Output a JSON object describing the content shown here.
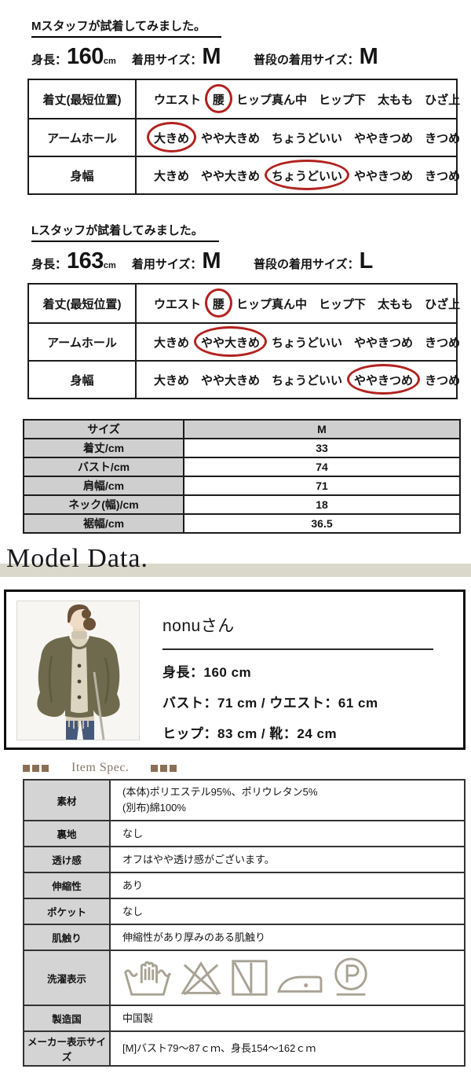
{
  "colors": {
    "red": "#b2221e",
    "band": "#d9d8ca",
    "brown": "#8a6f54",
    "spectxt": "#85796a",
    "icon": "#a8a294",
    "grayhead": "#cfcfcf",
    "specgray": "#d4d4d4"
  },
  "staff_sections": [
    {
      "title": "Mスタッフが試着してみました。",
      "height_label": "身長：",
      "height_value": "160",
      "height_unit": "cm",
      "wear_label": "着用サイズ：",
      "wear_value": "M",
      "usual_label": "普段の着用サイズ：",
      "usual_value": "M",
      "rows": [
        {
          "label": "着丈(最短位置)",
          "options": [
            "ウエスト",
            "腰",
            "ヒップ真ん中",
            "ヒップ下",
            "太もも",
            "ひざ上"
          ],
          "selected": 1
        },
        {
          "label": "アームホール",
          "options": [
            "大きめ",
            "やや大きめ",
            "ちょうどいい",
            "ややきつめ",
            "きつめ"
          ],
          "selected": 0
        },
        {
          "label": "身幅",
          "options": [
            "大きめ",
            "やや大きめ",
            "ちょうどいい",
            "ややきつめ",
            "きつめ"
          ],
          "selected": 2
        }
      ]
    },
    {
      "title": "Lスタッフが試着してみました。",
      "height_label": "身長：",
      "height_value": "163",
      "height_unit": "cm",
      "wear_label": "着用サイズ：",
      "wear_value": "M",
      "usual_label": "普段の着用サイズ：",
      "usual_value": "L",
      "rows": [
        {
          "label": "着丈(最短位置)",
          "options": [
            "ウエスト",
            "腰",
            "ヒップ真ん中",
            "ヒップ下",
            "太もも",
            "ひざ上"
          ],
          "selected": 1
        },
        {
          "label": "アームホール",
          "options": [
            "大きめ",
            "やや大きめ",
            "ちょうどいい",
            "ややきつめ",
            "きつめ"
          ],
          "selected": 1
        },
        {
          "label": "身幅",
          "options": [
            "大きめ",
            "やや大きめ",
            "ちょうどいい",
            "ややきつめ",
            "きつめ"
          ],
          "selected": 3
        }
      ]
    }
  ],
  "size_table": {
    "header": [
      "サイズ",
      "M"
    ],
    "rows": [
      [
        "着丈/cm",
        "33"
      ],
      [
        "バスト/cm",
        "74"
      ],
      [
        "肩幅/cm",
        "71"
      ],
      [
        "ネック(幅)/cm",
        "18"
      ],
      [
        "裾幅/cm",
        "36.5"
      ]
    ]
  },
  "model_section": {
    "heading": "Model Data.",
    "name": "nonuさん",
    "lines": [
      "身長：160 cm",
      "バスト：71 cm / ウエスト：61 cm",
      "ヒップ：83 cm / 靴：24 cm"
    ]
  },
  "item_spec": {
    "heading": "Item Spec.",
    "rows": [
      {
        "label": "素材",
        "value": "(本体)ポリエステル95%、ポリウレタン5%\n(別布)綿100%",
        "size": "tall"
      },
      {
        "label": "裏地",
        "value": "なし",
        "size": "normal"
      },
      {
        "label": "透け感",
        "value": "オフはやや透け感がございます。",
        "size": "normal"
      },
      {
        "label": "伸縮性",
        "value": "あり",
        "size": "normal"
      },
      {
        "label": "ポケット",
        "value": "なし",
        "size": "normal"
      },
      {
        "label": "肌触り",
        "value": "伸縮性があり厚みのある肌触り",
        "size": "normal"
      },
      {
        "label": "洗濯表示",
        "value": "",
        "size": "wash",
        "icons": [
          "hand-wash",
          "do-not-bleach",
          "line-dry-in-shade",
          "iron-low-heat",
          "dry-clean-p"
        ]
      },
      {
        "label": "製造国",
        "value": "中国製",
        "size": "normal"
      },
      {
        "label": "メーカー表示サイズ",
        "value": "[M]バスト79～87ｃｍ、身長154～162ｃｍ",
        "size": "normal"
      }
    ]
  }
}
